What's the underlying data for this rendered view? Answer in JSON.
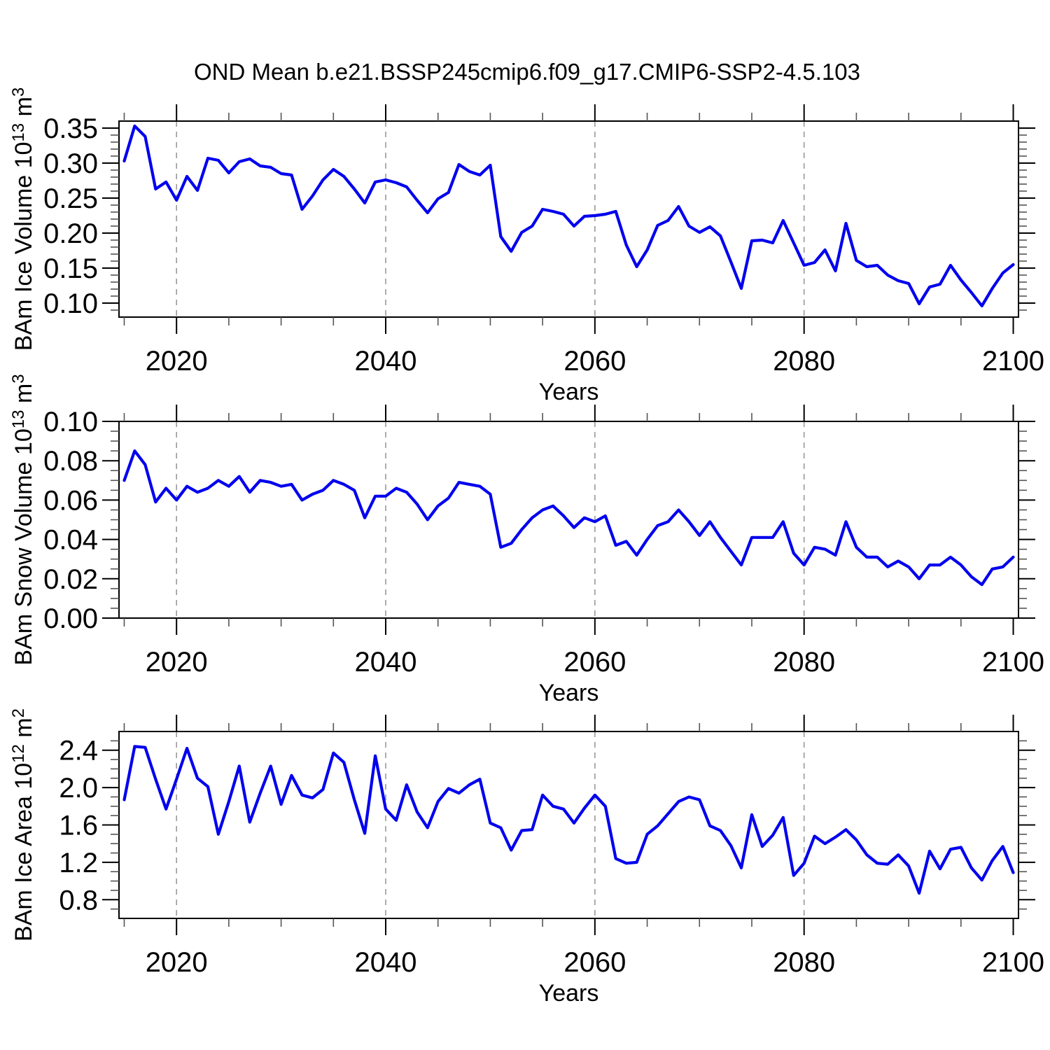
{
  "title": "OND Mean b.e21.BSSP245cmip6.f09_g17.CMIP6-SSP2-4.5.103",
  "chart_data": {
    "type": "line",
    "x_label": "Years",
    "xlim": [
      2014.5,
      2100.5
    ],
    "x_ticks": [
      2020,
      2040,
      2060,
      2080,
      2100
    ],
    "x_minor_ticks": [
      2015,
      2025,
      2030,
      2035,
      2045,
      2050,
      2055,
      2065,
      2070,
      2075,
      2085,
      2090,
      2095
    ],
    "grid_years": [
      2020,
      2040,
      2060,
      2080
    ],
    "line_color": "#0000EE",
    "grid_color": "#999999",
    "years": [
      2015,
      2016,
      2017,
      2018,
      2019,
      2020,
      2021,
      2022,
      2023,
      2024,
      2025,
      2026,
      2027,
      2028,
      2029,
      2030,
      2031,
      2032,
      2033,
      2034,
      2035,
      2036,
      2037,
      2038,
      2039,
      2040,
      2041,
      2042,
      2043,
      2044,
      2045,
      2046,
      2047,
      2048,
      2049,
      2050,
      2051,
      2052,
      2053,
      2054,
      2055,
      2056,
      2057,
      2058,
      2059,
      2060,
      2061,
      2062,
      2063,
      2064,
      2065,
      2066,
      2067,
      2068,
      2069,
      2070,
      2071,
      2072,
      2073,
      2074,
      2075,
      2076,
      2077,
      2078,
      2079,
      2080,
      2081,
      2082,
      2083,
      2084,
      2085,
      2086,
      2087,
      2088,
      2089,
      2090,
      2091,
      2092,
      2093,
      2094,
      2095,
      2096,
      2097,
      2098,
      2099,
      2100
    ],
    "panels": [
      {
        "name": "ice-volume",
        "ylabel_plain": "BAm Ice Volume 10^13 m^3",
        "ylabel_parts": [
          {
            "t": "BAm Ice Volume 10"
          },
          {
            "t": "13",
            "sup": true
          },
          {
            "t": " m"
          },
          {
            "t": "3",
            "sup": true
          }
        ],
        "ylim": [
          0.08,
          0.36
        ],
        "y_ticks": [
          0.1,
          0.15,
          0.2,
          0.25,
          0.3,
          0.35
        ],
        "y_tick_labels": [
          "0.10",
          "0.15",
          "0.20",
          "0.25",
          "0.30",
          "0.35"
        ],
        "y_minor_step": 0.01,
        "values": [
          0.303,
          0.353,
          0.338,
          0.263,
          0.273,
          0.247,
          0.281,
          0.261,
          0.307,
          0.304,
          0.286,
          0.302,
          0.306,
          0.296,
          0.294,
          0.285,
          0.283,
          0.234,
          0.253,
          0.276,
          0.291,
          0.281,
          0.263,
          0.243,
          0.273,
          0.276,
          0.272,
          0.266,
          0.247,
          0.229,
          0.249,
          0.258,
          0.298,
          0.288,
          0.283,
          0.297,
          0.195,
          0.174,
          0.201,
          0.21,
          0.234,
          0.231,
          0.227,
          0.21,
          0.224,
          0.225,
          0.227,
          0.231,
          0.183,
          0.152,
          0.176,
          0.211,
          0.218,
          0.238,
          0.21,
          0.201,
          0.209,
          0.196,
          0.159,
          0.121,
          0.189,
          0.19,
          0.186,
          0.218,
          0.186,
          0.154,
          0.158,
          0.176,
          0.146,
          0.214,
          0.161,
          0.152,
          0.154,
          0.14,
          0.132,
          0.128,
          0.099,
          0.123,
          0.127,
          0.154,
          0.133,
          0.115,
          0.096,
          0.121,
          0.143,
          0.155
        ]
      },
      {
        "name": "snow-volume",
        "ylabel_plain": "BAm Snow Volume 10^13 m^3",
        "ylabel_parts": [
          {
            "t": "BAm Snow Volume 10"
          },
          {
            "t": "13",
            "sup": true
          },
          {
            "t": " m"
          },
          {
            "t": "3",
            "sup": true
          }
        ],
        "ylim": [
          0.0,
          0.1
        ],
        "y_ticks": [
          0.0,
          0.02,
          0.04,
          0.06,
          0.08,
          0.1
        ],
        "y_tick_labels": [
          "0.00",
          "0.02",
          "0.04",
          "0.06",
          "0.08",
          "0.10"
        ],
        "y_minor_step": 0.005,
        "values": [
          0.07,
          0.085,
          0.078,
          0.059,
          0.066,
          0.06,
          0.067,
          0.064,
          0.066,
          0.07,
          0.067,
          0.072,
          0.064,
          0.07,
          0.069,
          0.067,
          0.068,
          0.06,
          0.063,
          0.065,
          0.07,
          0.068,
          0.065,
          0.051,
          0.062,
          0.062,
          0.066,
          0.064,
          0.058,
          0.05,
          0.057,
          0.061,
          0.069,
          0.068,
          0.067,
          0.063,
          0.036,
          0.038,
          0.045,
          0.051,
          0.055,
          0.057,
          0.052,
          0.046,
          0.051,
          0.049,
          0.052,
          0.037,
          0.039,
          0.032,
          0.04,
          0.047,
          0.049,
          0.055,
          0.049,
          0.042,
          0.049,
          0.041,
          0.034,
          0.027,
          0.041,
          0.041,
          0.041,
          0.049,
          0.033,
          0.027,
          0.036,
          0.035,
          0.032,
          0.049,
          0.036,
          0.031,
          0.031,
          0.026,
          0.029,
          0.026,
          0.02,
          0.027,
          0.027,
          0.031,
          0.027,
          0.021,
          0.017,
          0.025,
          0.026,
          0.031
        ]
      },
      {
        "name": "ice-area",
        "ylabel_plain": "BAm Ice Area 10^12 m^2",
        "ylabel_parts": [
          {
            "t": "BAm Ice Area 10"
          },
          {
            "t": "12",
            "sup": true
          },
          {
            "t": " m"
          },
          {
            "t": "2",
            "sup": true
          }
        ],
        "ylim": [
          0.6,
          2.6
        ],
        "y_ticks": [
          0.8,
          1.2,
          1.6,
          2.0,
          2.4
        ],
        "y_tick_labels": [
          "0.8",
          "1.2",
          "1.6",
          "2.0",
          "2.4"
        ],
        "y_minor_step": 0.1,
        "values": [
          1.87,
          2.44,
          2.43,
          2.09,
          1.77,
          2.09,
          2.42,
          2.1,
          2.01,
          1.5,
          1.85,
          2.23,
          1.63,
          1.94,
          2.23,
          1.82,
          2.13,
          1.92,
          1.89,
          1.98,
          2.37,
          2.27,
          1.87,
          1.51,
          2.34,
          1.77,
          1.65,
          2.03,
          1.74,
          1.57,
          1.85,
          1.99,
          1.94,
          2.03,
          2.09,
          1.62,
          1.57,
          1.33,
          1.54,
          1.55,
          1.92,
          1.8,
          1.77,
          1.62,
          1.78,
          1.92,
          1.8,
          1.24,
          1.19,
          1.2,
          1.5,
          1.59,
          1.72,
          1.85,
          1.9,
          1.87,
          1.59,
          1.54,
          1.38,
          1.14,
          1.71,
          1.37,
          1.49,
          1.68,
          1.06,
          1.19,
          1.48,
          1.4,
          1.47,
          1.55,
          1.44,
          1.28,
          1.19,
          1.18,
          1.28,
          1.16,
          0.87,
          1.32,
          1.13,
          1.34,
          1.36,
          1.14,
          1.01,
          1.22,
          1.37,
          1.09
        ]
      }
    ]
  }
}
